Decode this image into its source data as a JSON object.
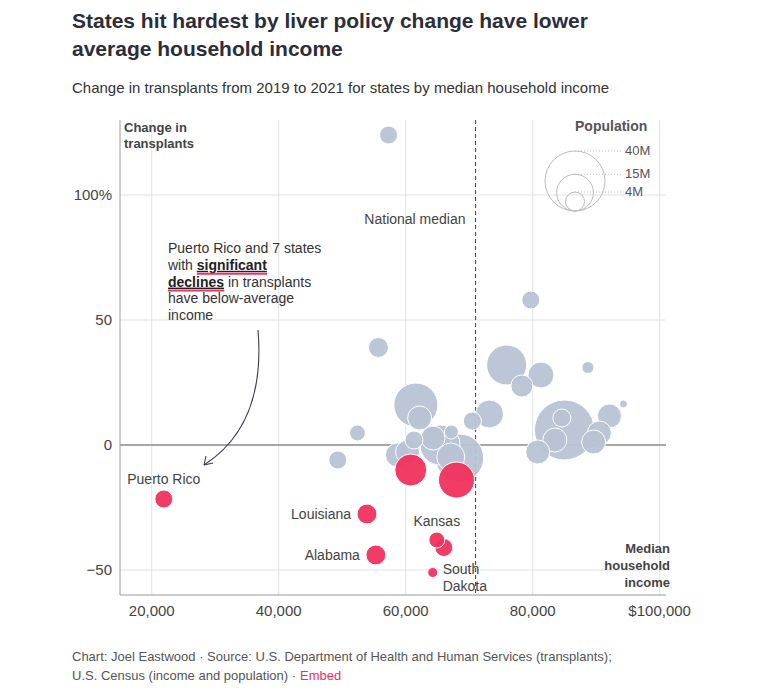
{
  "chart_data": {
    "type": "scatter",
    "title": [
      "States hit hardest by liver policy change have lower",
      "average household income"
    ],
    "subtitle": "Change in transplants from 2019 to 2021 for states by median household income",
    "y_label": [
      "Change in",
      "transplants"
    ],
    "x_label": [
      "Median",
      "household",
      "income"
    ],
    "xlim": [
      15000,
      101000
    ],
    "ylim": [
      -60,
      130
    ],
    "xticks": [
      {
        "value": 20000,
        "label": "20,000"
      },
      {
        "value": 40000,
        "label": "40,000"
      },
      {
        "value": 60000,
        "label": "60,000"
      },
      {
        "value": 80000,
        "label": "80,000"
      },
      {
        "value": 100000,
        "label": "$100,000"
      }
    ],
    "yticks": [
      {
        "value": -50,
        "label": "−50"
      },
      0,
      50,
      {
        "value": 100,
        "label": "100%"
      }
    ],
    "grid": true,
    "national_median": {
      "label": "National median",
      "value": 71000
    },
    "annotation": [
      "Puerto Rico and 7 states",
      "with significant",
      "declines in transplants",
      "have below-average",
      "income"
    ],
    "annotation_highlight": [
      "significant",
      "declines"
    ],
    "x": [
      21900,
      53900,
      55300,
      64900,
      66000,
      64250,
      60800,
      68000,
      57300,
      79700,
      55700,
      88700,
      75900,
      81300,
      78300,
      94300,
      92100,
      61600,
      62200,
      73200,
      70500,
      52400,
      67200,
      84600,
      85000,
      90500,
      89600,
      83500,
      80800,
      49300,
      58700,
      60300,
      65400,
      68500,
      64300,
      67100,
      61300
    ],
    "values": [
      -21.6,
      -27.6,
      -44,
      -38,
      -41,
      -51,
      -10,
      -14,
      124,
      58,
      39,
      31,
      32,
      28,
      23.6,
      16.4,
      11.6,
      16,
      10.8,
      12.4,
      9.6,
      4.8,
      5.2,
      10.8,
      6,
      4.8,
      1.2,
      2,
      -2.8,
      -6,
      -4,
      -2.8,
      0,
      -5.2,
      2.8,
      -4.8,
      2
    ],
    "sizes": [
      3.6,
      4.4,
      4.4,
      2.8,
      3.6,
      1.1,
      11.4,
      14.4,
      3.6,
      3.6,
      4.4,
      1.6,
      17.8,
      7.5,
      5.4,
      0.7,
      6.4,
      21.5,
      6.4,
      8.7,
      3.6,
      2.8,
      2.2,
      3.6,
      40,
      6.4,
      6.4,
      6.4,
      6.4,
      3.6,
      6.4,
      6.4,
      17.8,
      25.6,
      6.4,
      8.7,
      3.6
    ],
    "names": [
      "Puerto Rico",
      "Louisiana",
      "Alabama",
      "Kansas",
      null,
      "South Dakota",
      null,
      null,
      null,
      null,
      null,
      null,
      null,
      null,
      null,
      null,
      null,
      null,
      null,
      null,
      null,
      null,
      null,
      null,
      null,
      null,
      null,
      null,
      null,
      null,
      null,
      null,
      null,
      null,
      null,
      null,
      null
    ],
    "colors": [
      "#f0325e",
      "#f0325e",
      "#f0325e",
      "#f0325e",
      "#f0325e",
      "#f0325e",
      "#f0325e",
      "#f0325e",
      "#b8c3d4",
      "#b8c3d4",
      "#b8c3d4",
      "#b8c3d4",
      "#b8c3d4",
      "#b8c3d4",
      "#b8c3d4",
      "#b8c3d4",
      "#b8c3d4",
      "#b8c3d4",
      "#b8c3d4",
      "#b8c3d4",
      "#b8c3d4",
      "#b8c3d4",
      "#b8c3d4",
      "#b8c3d4",
      "#b8c3d4",
      "#b8c3d4",
      "#b8c3d4",
      "#b8c3d4",
      "#b8c3d4",
      "#b8c3d4",
      "#b8c3d4",
      "#b8c3d4",
      "#b8c3d4",
      "#b8c3d4",
      "#b8c3d4",
      "#b8c3d4",
      "#b8c3d4"
    ],
    "size_legend": {
      "title": "Population",
      "values": [
        {
          "value": 40,
          "label": "40M"
        },
        {
          "value": 15,
          "label": "15M"
        },
        {
          "value": 4,
          "label": "4M"
        }
      ]
    },
    "footer": [
      "Chart: Joel Eastwood · Source: U.S. Department of Health and Human Services (transplants);",
      "U.S. Census (income and population) ·"
    ],
    "footer_link": "Embed"
  }
}
